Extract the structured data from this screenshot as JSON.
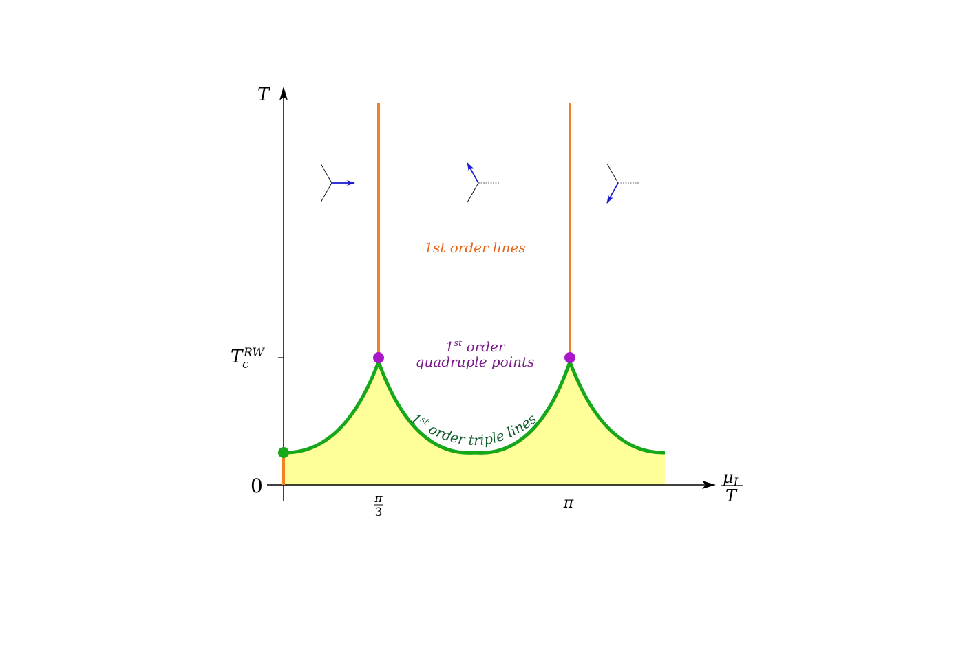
{
  "axes": {
    "y_label": "T",
    "x_label_num": "μ",
    "x_label_sub": "I",
    "x_label_den": "T",
    "y_tick_zero": "0",
    "y_tick_trw": "T",
    "y_tick_trw_sub": "c",
    "y_tick_trw_sup": "RW",
    "x_tick_pi3_num": "π",
    "x_tick_pi3_den": "3",
    "x_tick_pi": "π"
  },
  "labels": {
    "first_order_lines": "1st order lines",
    "quadruple_points_sup": "st",
    "quadruple_points_l1_a": "1",
    "quadruple_points_l1_b": " order",
    "quadruple_points_l2": "quadruple points",
    "triple_lines_a": "1",
    "triple_lines_sup": "st",
    "triple_lines_b": " order triple lines"
  },
  "colors": {
    "orange": "#f5821f",
    "green": "#16a81a",
    "purple": "#a818c8",
    "fill": "#ffff99",
    "dark_green_text": "#0e5a2a",
    "orange_text": "#e8641a",
    "purple_text": "#7a1a8a",
    "arrow_blue": "#1a1ad0"
  }
}
